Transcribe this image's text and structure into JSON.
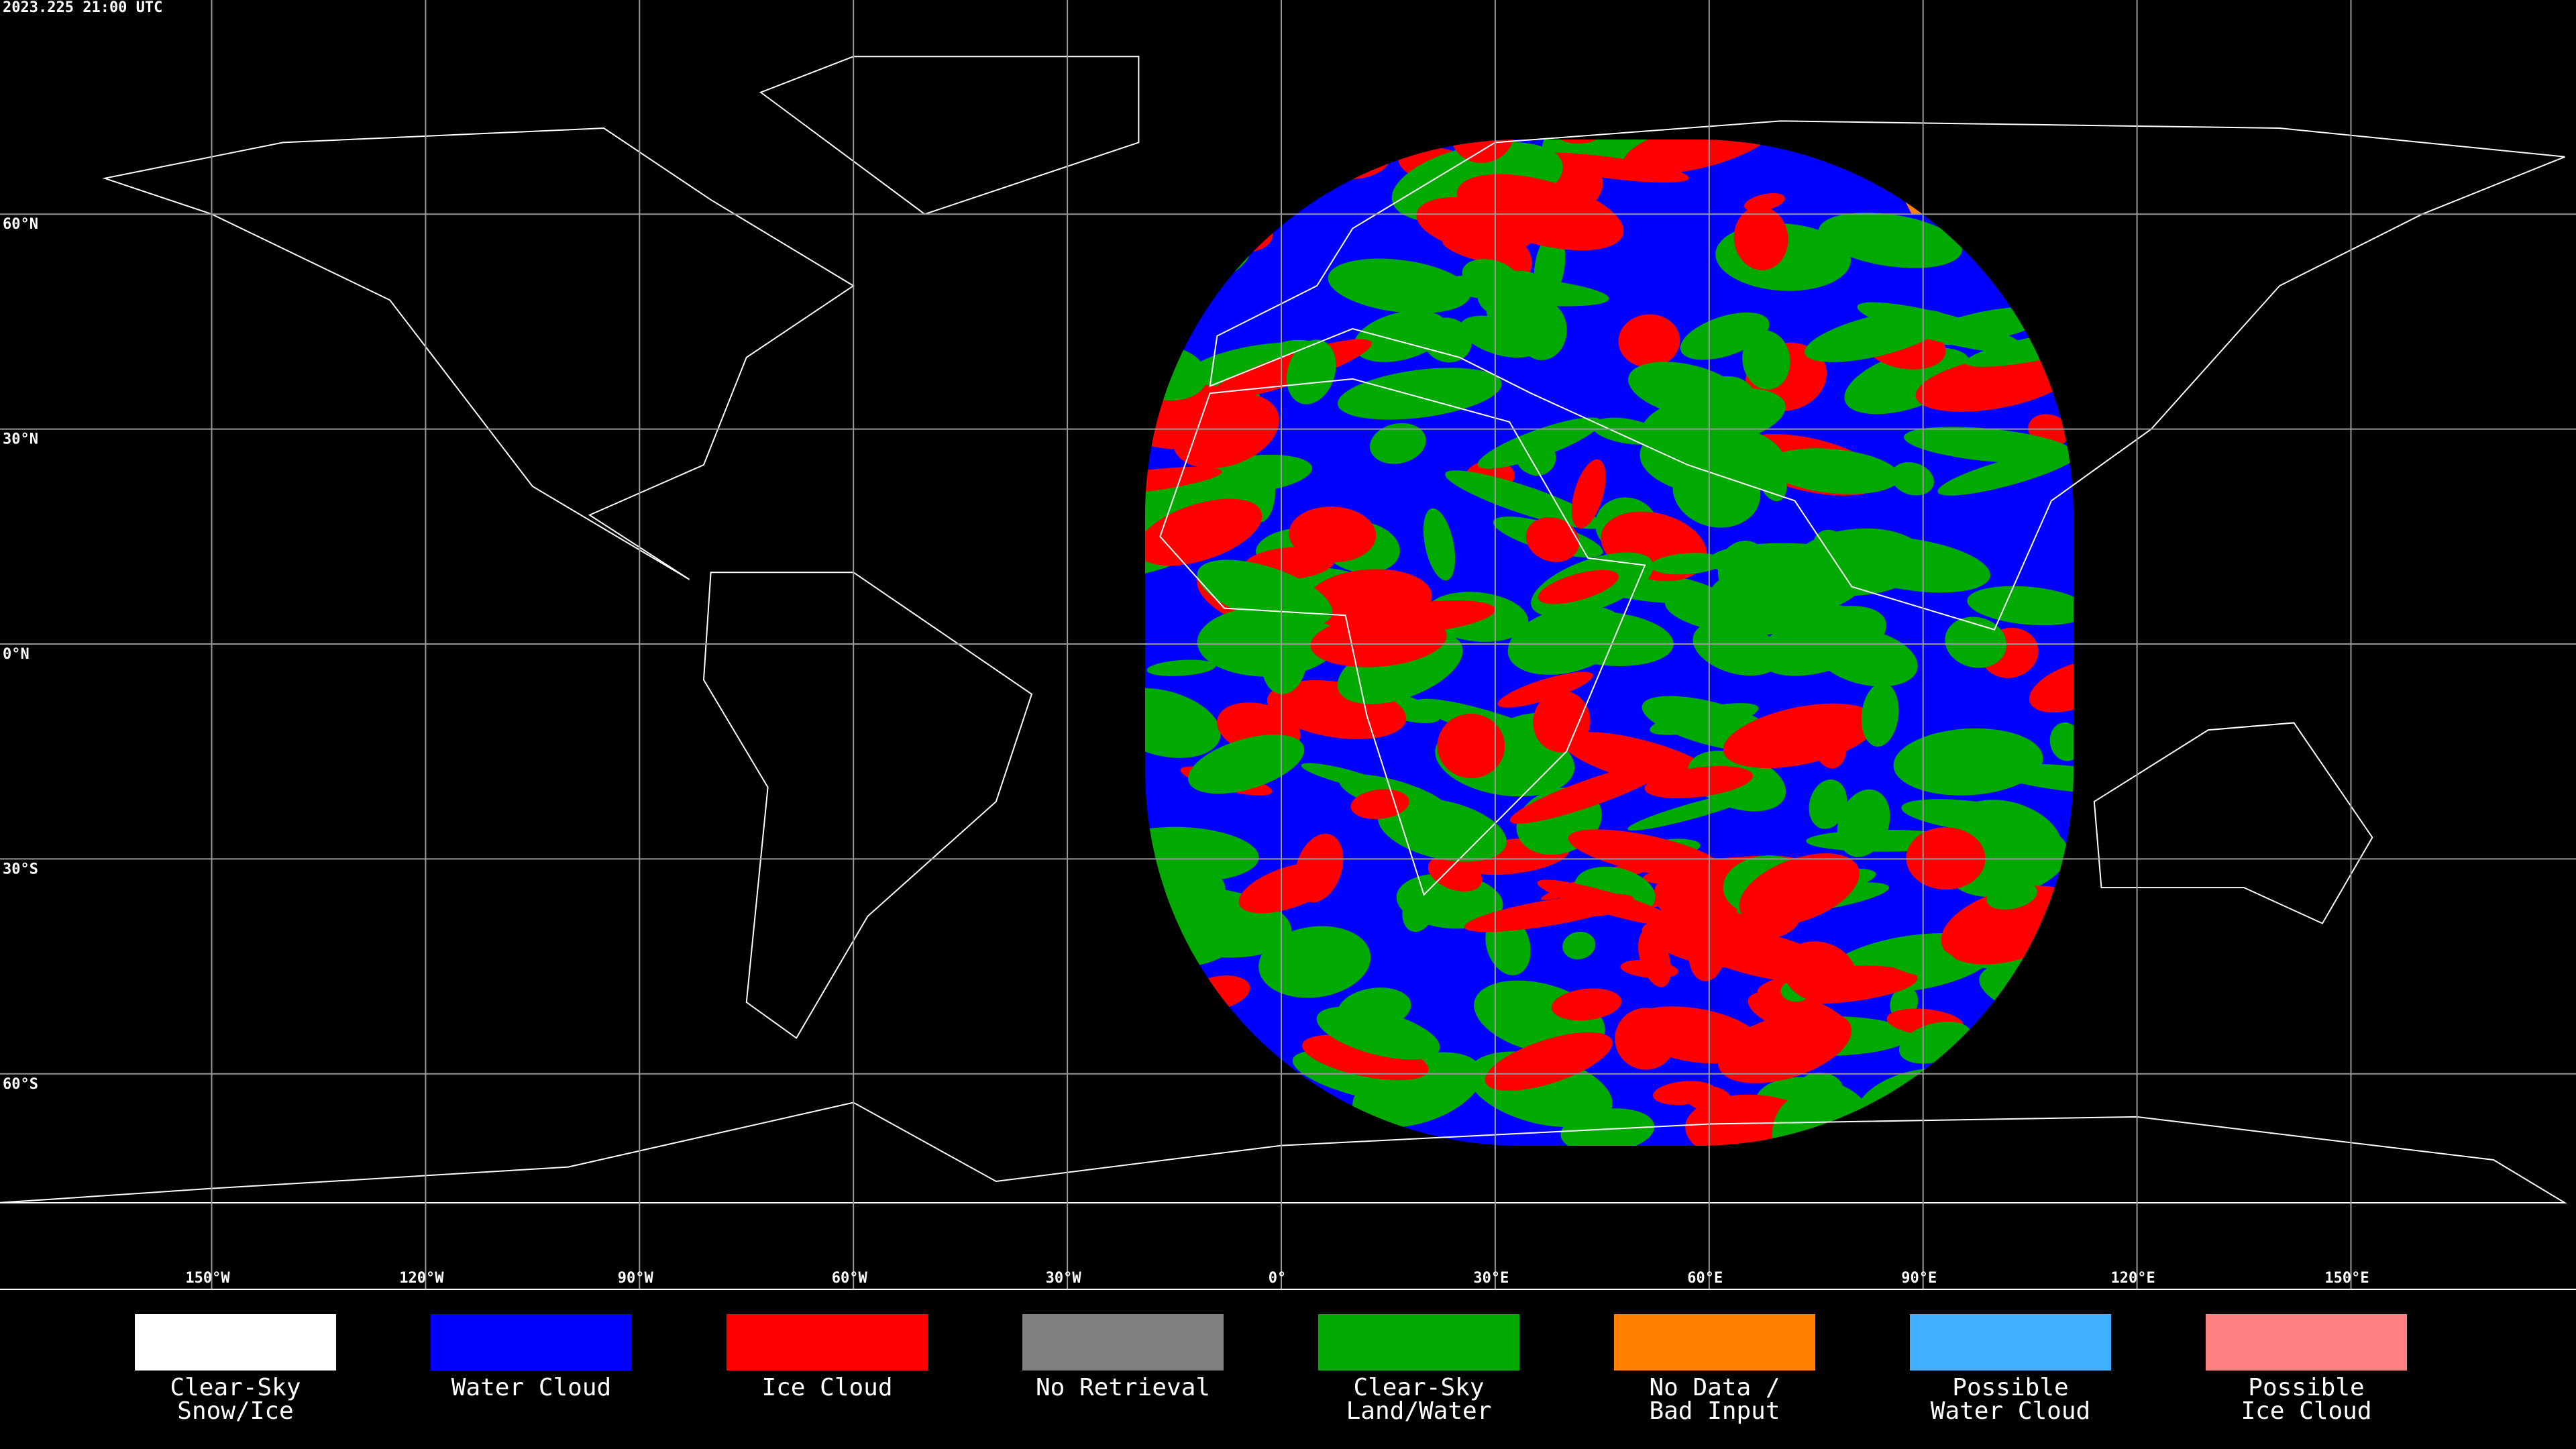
{
  "header": {
    "timestamp": "2023.225 21:00 UTC"
  },
  "grid": {
    "longitudes": [
      {
        "value": -150,
        "label": "150°W"
      },
      {
        "value": -120,
        "label": "120°W"
      },
      {
        "value": -90,
        "label": "90°W"
      },
      {
        "value": -60,
        "label": "60°W"
      },
      {
        "value": -30,
        "label": "30°W"
      },
      {
        "value": 0,
        "label": "0°"
      },
      {
        "value": 30,
        "label": "30°E"
      },
      {
        "value": 60,
        "label": "60°E"
      },
      {
        "value": 90,
        "label": "90°E"
      },
      {
        "value": 120,
        "label": "120°E"
      },
      {
        "value": 150,
        "label": "150°E"
      }
    ],
    "latitudes": [
      {
        "value": 60,
        "label": "60°N"
      },
      {
        "value": 30,
        "label": "30°N"
      },
      {
        "value": 0,
        "label": "0°N"
      },
      {
        "value": -30,
        "label": "30°S"
      },
      {
        "value": -60,
        "label": "60°S"
      }
    ]
  },
  "legend": {
    "items": [
      {
        "label": [
          "Clear-Sky",
          "Snow/Ice"
        ],
        "color": "#ffffff"
      },
      {
        "label": [
          "Water Cloud"
        ],
        "color": "#0000ff"
      },
      {
        "label": [
          "Ice Cloud"
        ],
        "color": "#ff0000"
      },
      {
        "label": [
          "No Retrieval"
        ],
        "color": "#808080"
      },
      {
        "label": [
          "Clear-Sky",
          "Land/Water"
        ],
        "color": "#00aa00"
      },
      {
        "label": [
          "No Data /",
          "Bad Input"
        ],
        "color": "#ff8000"
      },
      {
        "label": [
          "Possible",
          "Water Cloud"
        ],
        "color": "#40b0ff"
      },
      {
        "label": [
          "Possible",
          "Ice Cloud"
        ],
        "color": "#ff8080"
      }
    ]
  }
}
